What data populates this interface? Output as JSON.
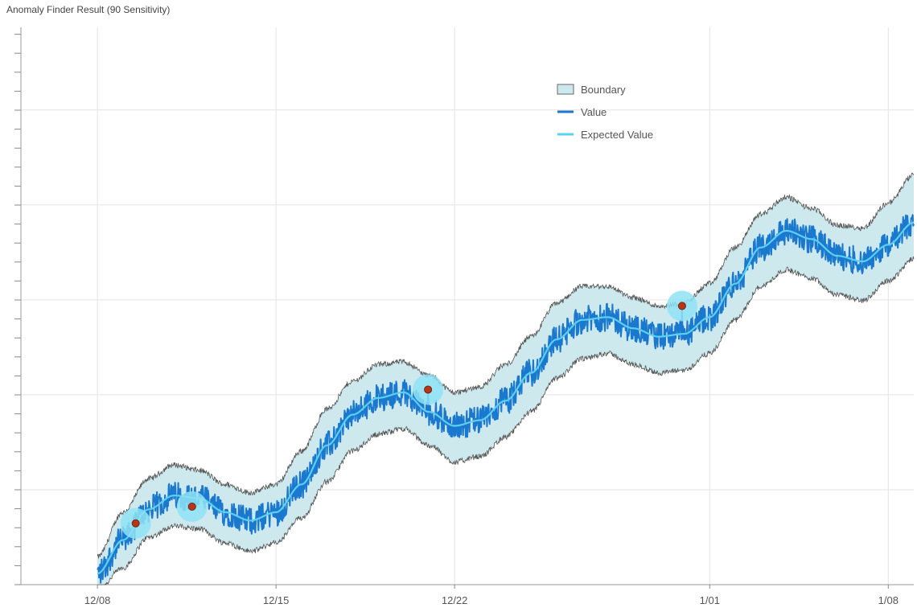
{
  "chart_data": {
    "type": "line",
    "title": "Anomaly Finder Result (90 Sensitivity)",
    "xlabel": "",
    "ylabel": "",
    "x_ticks": [
      "12/08",
      "12/15",
      "12/22",
      "1/01",
      "1/08"
    ],
    "x_range": [
      "2018-12-05",
      "2019-01-09"
    ],
    "y_range": [
      0,
      100
    ],
    "grid": true,
    "legend_position": "top-right",
    "legend": [
      {
        "label": "Boundary",
        "kind": "band"
      },
      {
        "label": "Value",
        "kind": "line"
      },
      {
        "label": "Expected Value",
        "kind": "line"
      }
    ],
    "expected_value": {
      "name": "Expected Value",
      "x": [
        "2018-12-08",
        "2018-12-09",
        "2018-12-10",
        "2018-12-11",
        "2018-12-12",
        "2018-12-13",
        "2018-12-14",
        "2018-12-15",
        "2018-12-16",
        "2018-12-17",
        "2018-12-18",
        "2018-12-19",
        "2018-12-20",
        "2018-12-21",
        "2018-12-22",
        "2018-12-23",
        "2018-12-24",
        "2018-12-25",
        "2018-12-26",
        "2018-12-27",
        "2018-12-28",
        "2018-12-29",
        "2018-12-30",
        "2018-12-31",
        "2019-01-01",
        "2019-01-02",
        "2019-01-03",
        "2019-01-04",
        "2019-01-05",
        "2019-01-06",
        "2019-01-07",
        "2019-01-08",
        "2019-01-09"
      ],
      "values": [
        2,
        8,
        13.5,
        16,
        15.5,
        13,
        11.5,
        13,
        18,
        25,
        30.5,
        33.5,
        34.5,
        31,
        28.5,
        29.5,
        33,
        38,
        44,
        47.5,
        48,
        46,
        44.5,
        45,
        48,
        54,
        60.5,
        63.5,
        62,
        59,
        58,
        61,
        65
      ]
    },
    "boundary": {
      "name": "Boundary",
      "x": [
        "2018-12-08",
        "2018-12-09",
        "2018-12-10",
        "2018-12-11",
        "2018-12-12",
        "2018-12-13",
        "2018-12-14",
        "2018-12-15",
        "2018-12-16",
        "2018-12-17",
        "2018-12-18",
        "2018-12-19",
        "2018-12-20",
        "2018-12-21",
        "2018-12-22",
        "2018-12-23",
        "2018-12-24",
        "2018-12-25",
        "2018-12-26",
        "2018-12-27",
        "2018-12-28",
        "2018-12-29",
        "2018-12-30",
        "2018-12-31",
        "2019-01-01",
        "2019-01-02",
        "2019-01-03",
        "2019-01-04",
        "2019-01-05",
        "2019-01-06",
        "2019-01-07",
        "2019-01-08",
        "2019-01-09"
      ],
      "upper": [
        5,
        13,
        19,
        21.5,
        20.5,
        18,
        16.5,
        18,
        24,
        31.5,
        36.5,
        39.5,
        40,
        37.5,
        34.5,
        35.5,
        39.5,
        44.5,
        50.5,
        53.5,
        53.5,
        51.5,
        50,
        50.5,
        54,
        60.5,
        66.5,
        69.5,
        67.5,
        64.5,
        64,
        68.5,
        73.5
      ],
      "lower": [
        -1,
        3,
        8.5,
        10.5,
        10,
        7.5,
        6,
        7.5,
        12,
        18.5,
        24,
        27,
        28,
        25,
        22,
        23,
        26.5,
        31,
        37,
        40.5,
        41.5,
        39.5,
        38,
        38.5,
        41.5,
        47.5,
        53.5,
        56.5,
        55,
        52,
        51,
        54.5,
        58.5
      ]
    },
    "value": {
      "name": "Value",
      "noise_amplitude": 2.5
    },
    "anomalies": [
      {
        "x": "2018-12-09 12:00",
        "y": 11
      },
      {
        "x": "2018-12-11 17:00",
        "y": 14
      },
      {
        "x": "2018-12-20 23:00",
        "y": 35
      },
      {
        "x": "2018-12-30 22:00",
        "y": 50
      }
    ],
    "colors": {
      "band_fill": "#cde9ee",
      "band_edge": "#555555",
      "value": "#1a78cf",
      "expected": "#5ad1f0",
      "anomaly_halo": "#8fe3f5",
      "anomaly_dot": "#b5371a",
      "grid": "#e3e3e3"
    }
  }
}
